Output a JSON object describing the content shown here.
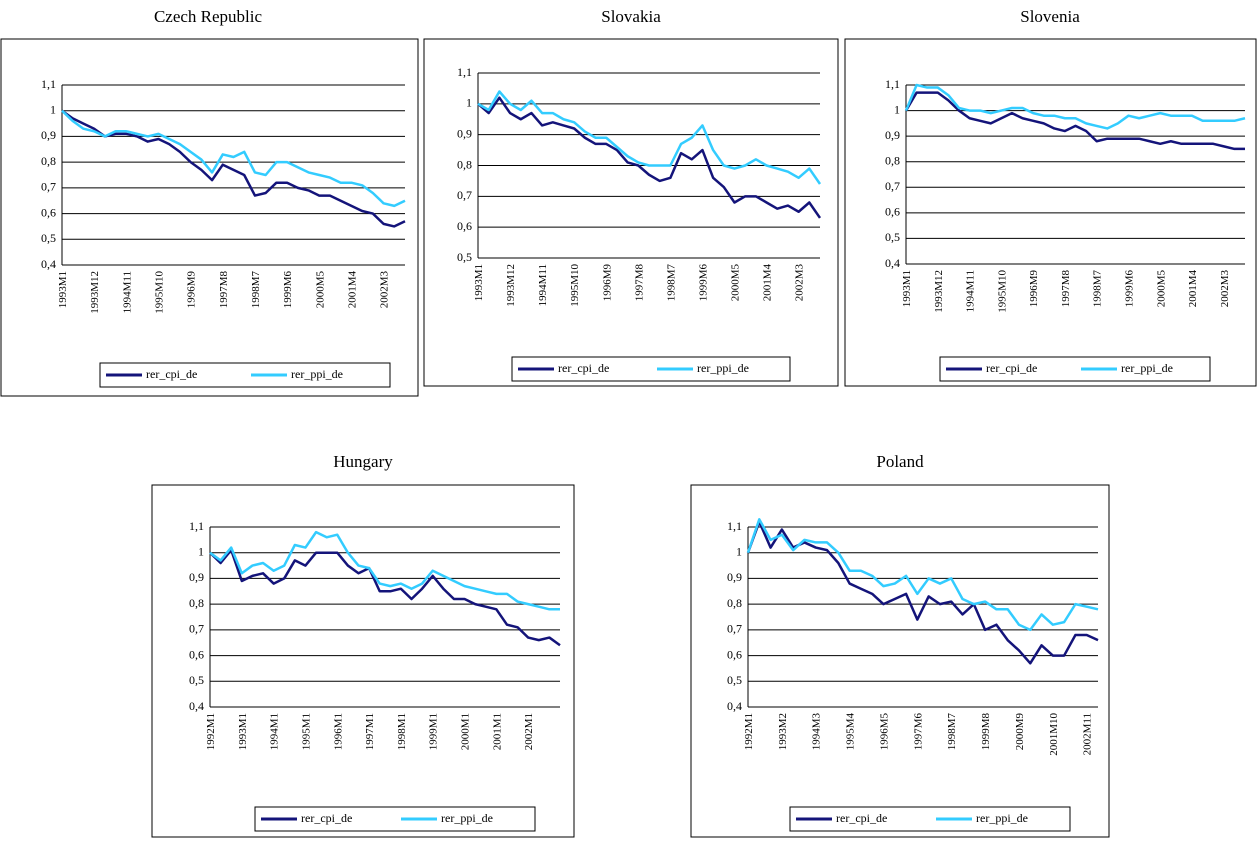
{
  "chart_data": [
    {
      "type": "line",
      "title": "Czech Republic",
      "categories": [
        "1993M1",
        null,
        null,
        "1993M12",
        null,
        null,
        "1994M11",
        null,
        null,
        "1995M10",
        null,
        null,
        "1996M9",
        null,
        null,
        "1997M8",
        null,
        null,
        "1998M7",
        null,
        null,
        "1999M6",
        null,
        null,
        "2000M5",
        null,
        null,
        "2001M4",
        null,
        null,
        "2002M3",
        null,
        null
      ],
      "series": [
        {
          "name": "rer_cpi_de",
          "color": "#14147a",
          "values": [
            1.0,
            0.97,
            0.95,
            0.93,
            0.9,
            0.91,
            0.91,
            0.9,
            0.88,
            0.89,
            0.87,
            0.84,
            0.8,
            0.77,
            0.73,
            0.79,
            0.77,
            0.75,
            0.67,
            0.68,
            0.72,
            0.72,
            0.7,
            0.69,
            0.67,
            0.67,
            0.65,
            0.63,
            0.61,
            0.6,
            0.56,
            0.55,
            0.57
          ]
        },
        {
          "name": "rer_ppi_de",
          "color": "#33ccff",
          "values": [
            1.0,
            0.96,
            0.93,
            0.92,
            0.9,
            0.92,
            0.92,
            0.91,
            0.9,
            0.91,
            0.89,
            0.87,
            0.84,
            0.81,
            0.76,
            0.83,
            0.82,
            0.84,
            0.76,
            0.75,
            0.8,
            0.8,
            0.78,
            0.76,
            0.75,
            0.74,
            0.72,
            0.72,
            0.71,
            0.68,
            0.64,
            0.63,
            0.65
          ]
        }
      ],
      "ylim": [
        0.4,
        1.1
      ],
      "yticks": [
        {
          "value": 0.4,
          "label": "0,4"
        },
        {
          "value": 0.5,
          "label": "0,5"
        },
        {
          "value": 0.6,
          "label": "0,6"
        },
        {
          "value": 0.7,
          "label": "0,7"
        },
        {
          "value": 0.8,
          "label": "0,8"
        },
        {
          "value": 0.9,
          "label": "0,9"
        },
        1,
        {
          "value": 1.1,
          "label": "1,1"
        }
      ],
      "grid": true,
      "legend": "bottom"
    },
    {
      "type": "line",
      "title": "Slovakia",
      "categories": [
        "1993M1",
        null,
        null,
        "1993M12",
        null,
        null,
        "1994M11",
        null,
        null,
        "1995M10",
        null,
        null,
        "1996M9",
        null,
        null,
        "1997M8",
        null,
        null,
        "1998M7",
        null,
        null,
        "1999M6",
        null,
        null,
        "2000M5",
        null,
        null,
        "2001M4",
        null,
        null,
        "2002M3",
        null,
        null
      ],
      "series": [
        {
          "name": "rer_cpi_de",
          "color": "#14147a",
          "values": [
            1.0,
            0.97,
            1.02,
            0.97,
            0.95,
            0.97,
            0.93,
            0.94,
            0.93,
            0.92,
            0.89,
            0.87,
            0.87,
            0.85,
            0.81,
            0.8,
            0.77,
            0.75,
            0.76,
            0.84,
            0.82,
            0.85,
            0.76,
            0.73,
            0.68,
            0.7,
            0.7,
            0.68,
            0.66,
            0.67,
            0.65,
            0.68,
            0.63
          ]
        },
        {
          "name": "rer_ppi_de",
          "color": "#33ccff",
          "values": [
            1.0,
            0.98,
            1.04,
            1.0,
            0.98,
            1.01,
            0.97,
            0.97,
            0.95,
            0.94,
            0.91,
            0.89,
            0.89,
            0.86,
            0.83,
            0.81,
            0.8,
            0.8,
            0.8,
            0.87,
            0.89,
            0.93,
            0.85,
            0.8,
            0.79,
            0.8,
            0.82,
            0.8,
            0.79,
            0.78,
            0.76,
            0.79,
            0.74
          ]
        }
      ],
      "ylim": [
        0.5,
        1.1
      ],
      "yticks": [
        {
          "value": 0.5,
          "label": "0,5"
        },
        {
          "value": 0.6,
          "label": "0,6"
        },
        {
          "value": 0.7,
          "label": "0,7"
        },
        {
          "value": 0.8,
          "label": "0,8"
        },
        {
          "value": 0.9,
          "label": "0,9"
        },
        1,
        {
          "value": 1.1,
          "label": "1,1"
        }
      ],
      "grid": true,
      "legend": "bottom"
    },
    {
      "type": "line",
      "title": "Slovenia",
      "categories": [
        "1993M1",
        null,
        null,
        "1993M12",
        null,
        null,
        "1994M11",
        null,
        null,
        "1995M10",
        null,
        null,
        "1996M9",
        null,
        null,
        "1997M8",
        null,
        null,
        "1998M7",
        null,
        null,
        "1999M6",
        null,
        null,
        "2000M5",
        null,
        null,
        "2001M4",
        null,
        null,
        "2002M3",
        null,
        null
      ],
      "series": [
        {
          "name": "rer_cpi_de",
          "color": "#14147a",
          "values": [
            1.0,
            1.07,
            1.07,
            1.07,
            1.04,
            1.0,
            0.97,
            0.96,
            0.95,
            0.97,
            0.99,
            0.97,
            0.96,
            0.95,
            0.93,
            0.92,
            0.94,
            0.92,
            0.88,
            0.89,
            0.89,
            0.89,
            0.89,
            0.88,
            0.87,
            0.88,
            0.87,
            0.87,
            0.87,
            0.87,
            0.86,
            0.85,
            0.85
          ]
        },
        {
          "name": "rer_ppi_de",
          "color": "#33ccff",
          "values": [
            1.0,
            1.1,
            1.09,
            1.09,
            1.06,
            1.01,
            1.0,
            1.0,
            0.99,
            1.0,
            1.01,
            1.01,
            0.99,
            0.98,
            0.98,
            0.97,
            0.97,
            0.95,
            0.94,
            0.93,
            0.95,
            0.98,
            0.97,
            0.98,
            0.99,
            0.98,
            0.98,
            0.98,
            0.96,
            0.96,
            0.96,
            0.96,
            0.97
          ]
        }
      ],
      "ylim": [
        0.4,
        1.1
      ],
      "yticks": [
        {
          "value": 0.4,
          "label": "0,4"
        },
        {
          "value": 0.5,
          "label": "0,5"
        },
        {
          "value": 0.6,
          "label": "0,6"
        },
        {
          "value": 0.7,
          "label": "0,7"
        },
        {
          "value": 0.8,
          "label": "0,8"
        },
        {
          "value": 0.9,
          "label": "0,9"
        },
        1,
        {
          "value": 1.1,
          "label": "1,1"
        }
      ],
      "grid": true,
      "legend": "bottom"
    },
    {
      "type": "line",
      "title": "Hungary",
      "categories": [
        "1992M1",
        null,
        null,
        "1993M1",
        null,
        null,
        "1994M1",
        null,
        null,
        "1995M1",
        null,
        null,
        "1996M1",
        null,
        null,
        "1997M1",
        null,
        null,
        "1998M1",
        null,
        null,
        "1999M1",
        null,
        null,
        "2000M1",
        null,
        null,
        "2001M1",
        null,
        null,
        "2002M1",
        null,
        null,
        null
      ],
      "series": [
        {
          "name": "rer_cpi_de",
          "color": "#14147a",
          "values": [
            1.0,
            0.96,
            1.01,
            0.89,
            0.91,
            0.92,
            0.88,
            0.9,
            0.97,
            0.95,
            1.0,
            1.0,
            1.0,
            0.95,
            0.92,
            0.94,
            0.85,
            0.85,
            0.86,
            0.82,
            0.86,
            0.91,
            0.86,
            0.82,
            0.82,
            0.8,
            0.79,
            0.78,
            0.72,
            0.71,
            0.67,
            0.66,
            0.67,
            0.64
          ]
        },
        {
          "name": "rer_ppi_de",
          "color": "#33ccff",
          "values": [
            1.0,
            0.97,
            1.02,
            0.92,
            0.95,
            0.96,
            0.93,
            0.95,
            1.03,
            1.02,
            1.08,
            1.06,
            1.07,
            1.0,
            0.95,
            0.94,
            0.88,
            0.87,
            0.88,
            0.86,
            0.88,
            0.93,
            0.91,
            0.89,
            0.87,
            0.86,
            0.85,
            0.84,
            0.84,
            0.81,
            0.8,
            0.79,
            0.78,
            0.78
          ]
        }
      ],
      "ylim": [
        0.4,
        1.1
      ],
      "yticks": [
        {
          "value": 0.4,
          "label": "0,4"
        },
        {
          "value": 0.5,
          "label": "0,5"
        },
        {
          "value": 0.6,
          "label": "0,6"
        },
        {
          "value": 0.7,
          "label": "0,7"
        },
        {
          "value": 0.8,
          "label": "0,8"
        },
        {
          "value": 0.9,
          "label": "0,9"
        },
        1,
        {
          "value": 1.1,
          "label": "1,1"
        }
      ],
      "grid": true,
      "legend": "bottom"
    },
    {
      "type": "line",
      "title": "Poland",
      "categories": [
        "1992M1",
        null,
        null,
        "1993M2",
        null,
        null,
        "1994M3",
        null,
        null,
        "1995M4",
        null,
        null,
        "1996M5",
        null,
        null,
        "1997M6",
        null,
        null,
        "1998M7",
        null,
        null,
        "1999M8",
        null,
        null,
        "2000M9",
        null,
        null,
        "2001M10",
        null,
        null,
        "2002M11",
        null
      ],
      "series": [
        {
          "name": "rer_cpi_de",
          "color": "#14147a",
          "values": [
            1.0,
            1.12,
            1.02,
            1.09,
            1.02,
            1.04,
            1.02,
            1.01,
            0.96,
            0.88,
            0.86,
            0.84,
            0.8,
            0.82,
            0.84,
            0.74,
            0.83,
            0.8,
            0.81,
            0.76,
            0.8,
            0.7,
            0.72,
            0.66,
            0.62,
            0.57,
            0.64,
            0.6,
            0.6,
            0.68,
            0.68,
            0.66
          ]
        },
        {
          "name": "rer_ppi_de",
          "color": "#33ccff",
          "values": [
            1.0,
            1.13,
            1.05,
            1.07,
            1.01,
            1.05,
            1.04,
            1.04,
            1.0,
            0.93,
            0.93,
            0.91,
            0.87,
            0.88,
            0.91,
            0.84,
            0.9,
            0.88,
            0.9,
            0.82,
            0.8,
            0.81,
            0.78,
            0.78,
            0.72,
            0.7,
            0.76,
            0.72,
            0.73,
            0.8,
            0.79,
            0.78
          ]
        }
      ],
      "ylim": [
        0.4,
        1.1
      ],
      "yticks": [
        {
          "value": 0.4,
          "label": "0,4"
        },
        {
          "value": 0.5,
          "label": "0,5"
        },
        {
          "value": 0.6,
          "label": "0,6"
        },
        {
          "value": 0.7,
          "label": "0,7"
        },
        {
          "value": 0.8,
          "label": "0,8"
        },
        {
          "value": 0.9,
          "label": "0,9"
        },
        1,
        {
          "value": 1.1,
          "label": "1,1"
        }
      ],
      "grid": true,
      "legend": "bottom"
    }
  ]
}
